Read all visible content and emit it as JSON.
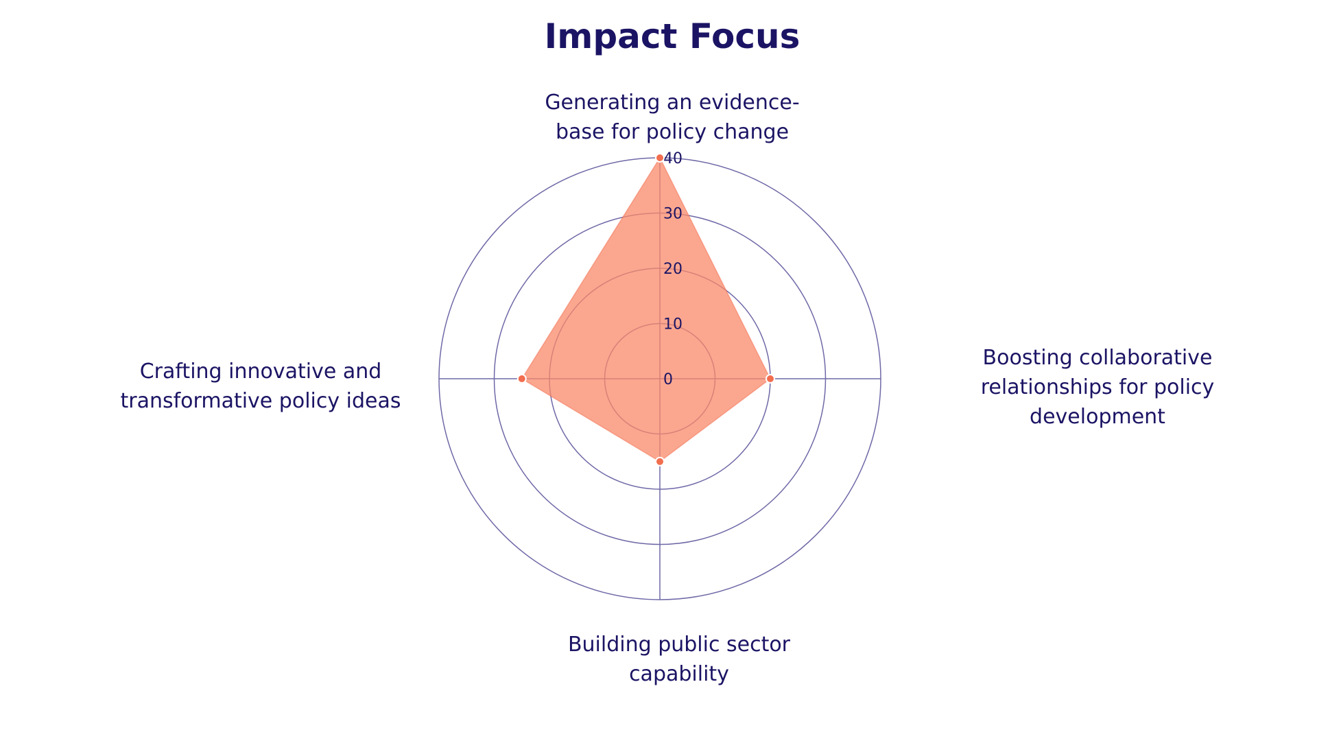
{
  "chart_data": {
    "type": "radar",
    "title": "Impact Focus",
    "axes": [
      "Generating an evidence-base for policy change",
      "Boosting collaborative relationships for policy development",
      "Building public sector capability",
      "Crafting innovative and transformative policy ideas"
    ],
    "axis_labels_display": [
      "Generating an evidence-\nbase for policy change",
      "Boosting collaborative\nrelationships for policy\ndevelopment",
      "Building public sector\ncapability",
      "Crafting innovative and\ntransformative policy ideas"
    ],
    "values": [
      40,
      20,
      15,
      25
    ],
    "r_ticks": [
      0,
      10,
      20,
      30,
      40
    ],
    "r_range": [
      0,
      40
    ],
    "grid": true,
    "legend": "none"
  },
  "colors": {
    "fill": "#fa8a6a",
    "fill_opacity": 0.75,
    "point": "#f26e4f",
    "grid": "#6e68a6",
    "text": "#1b1464"
  }
}
